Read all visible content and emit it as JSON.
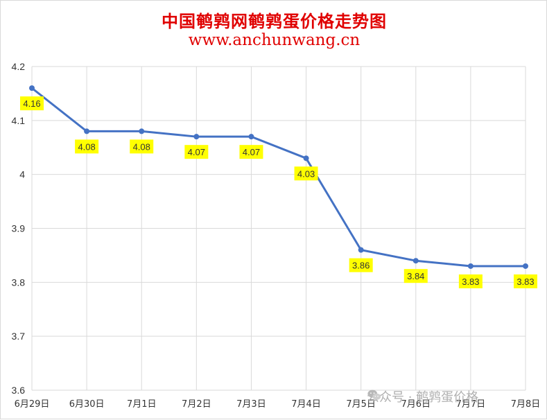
{
  "title": "中国鹌鹑网鹌鹑蛋价格走势图",
  "subtitle": "www.anchunwang.cn",
  "watermark": "公众号 · 鹌鹑蛋价格",
  "watermark_icon": "wechat-icon",
  "colors": {
    "title": "#e00000",
    "line": "#4472c4",
    "label_bg": "#ffff00",
    "grid": "#d9d9d9"
  },
  "chart_data": {
    "type": "line",
    "title": "中国鹌鹑网鹌鹑蛋价格走势图",
    "xlabel": "",
    "ylabel": "",
    "categories": [
      "6月29日",
      "6月30日",
      "7月1日",
      "7月2日",
      "7月3日",
      "7月4日",
      "7月5日",
      "7月6日",
      "7月7日",
      "7月8日"
    ],
    "series": [
      {
        "values": [
          4.16,
          4.08,
          4.08,
          4.07,
          4.07,
          4.03,
          3.86,
          3.84,
          3.83,
          3.83
        ]
      }
    ],
    "labels": [
      "4.16",
      "4.08",
      "4.08",
      "4.07",
      "4.07",
      "4.03",
      "3.86",
      "3.84",
      "3.83",
      "3.83"
    ],
    "ylim": [
      3.6,
      4.2
    ],
    "yticks": [
      "3.6",
      "3.7",
      "3.8",
      "3.9",
      "4",
      "4.1",
      "4.2"
    ],
    "grid": true,
    "legend": "none"
  }
}
